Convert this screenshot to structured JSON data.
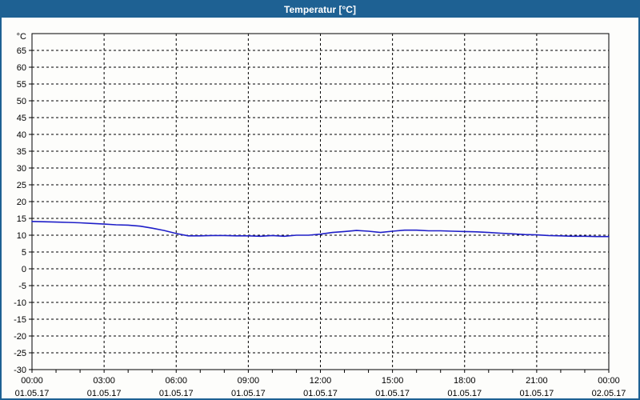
{
  "window": {
    "title": "Temperatur [°C]"
  },
  "colors": {
    "titlebar_bg": "#1E6193",
    "titlebar_text": "#FFFFFF",
    "window_border": "#1E6193",
    "plot_bg": "#FDFDFB",
    "grid": "#000000",
    "axis": "#000000",
    "line": "#1E1EC8",
    "label_text": "#000000"
  },
  "chart_data": {
    "type": "line",
    "title": "Temperatur [°C]",
    "ylabel": "°C",
    "xlabel": "",
    "ylim": [
      -30,
      70
    ],
    "grid": true,
    "legend_position": "none",
    "y_tick_labels": [
      65,
      60,
      55,
      50,
      45,
      40,
      35,
      30,
      25,
      20,
      15,
      10,
      5,
      0,
      -5,
      -10,
      -15,
      -20,
      -25,
      -30
    ],
    "x_axis": {
      "hours_total": 24,
      "major_tick_every_hours": 3,
      "minor_tick_every_hours": 1,
      "tick_times": [
        "00:00",
        "03:00",
        "06:00",
        "09:00",
        "12:00",
        "15:00",
        "18:00",
        "21:00",
        "00:00"
      ],
      "tick_dates": [
        "01.05.17",
        "01.05.17",
        "01.05.17",
        "01.05.17",
        "01.05.17",
        "01.05.17",
        "01.05.17",
        "01.05.17",
        "02.05.17"
      ]
    },
    "series": [
      {
        "name": "Temperatur",
        "x_hours": [
          0,
          0.5,
          1,
          1.5,
          2,
          2.5,
          3,
          3.5,
          4,
          4.5,
          5,
          5.5,
          6,
          6.5,
          7,
          7.5,
          8,
          8.5,
          9,
          9.5,
          10,
          10.5,
          11,
          11.5,
          12,
          12.5,
          13,
          13.5,
          14,
          14.5,
          15,
          15.5,
          16,
          16.5,
          17,
          17.5,
          18,
          18.5,
          19,
          19.5,
          20,
          20.5,
          21,
          21.5,
          22,
          22.5,
          23,
          23.5,
          24
        ],
        "values": [
          14.1,
          14.0,
          13.9,
          13.8,
          13.7,
          13.5,
          13.3,
          13.1,
          13.0,
          12.7,
          12.1,
          11.4,
          10.5,
          9.8,
          9.8,
          9.9,
          9.9,
          9.8,
          9.8,
          9.7,
          9.9,
          9.7,
          10.0,
          10.0,
          10.3,
          10.8,
          11.1,
          11.4,
          11.2,
          10.8,
          11.2,
          11.5,
          11.5,
          11.3,
          11.3,
          11.2,
          11.1,
          11.0,
          10.8,
          10.6,
          10.4,
          10.2,
          10.1,
          9.9,
          9.8,
          9.7,
          9.7,
          9.6,
          9.6
        ]
      }
    ]
  }
}
